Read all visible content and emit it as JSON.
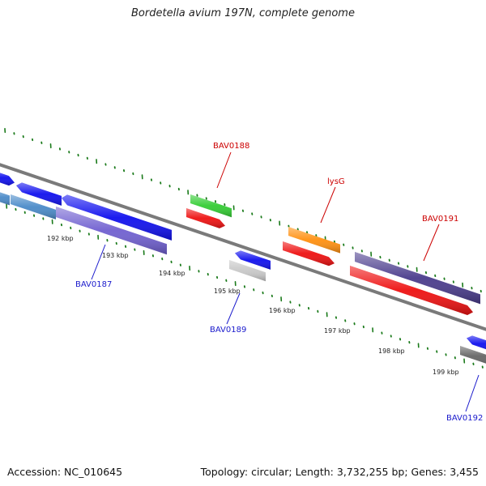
{
  "title": "Bordetella avium 197N, complete genome",
  "footer": {
    "accession": "Accession: NC_010645",
    "topology": "Topology: circular; Length: 3,732,255 bp; Genes: 3,455"
  },
  "colors": {
    "backbone": "#7a7a7a",
    "tick": "#1a7a1a",
    "forward_label": "#cc0000",
    "reverse_label": "#1a1acc"
  },
  "kbp_ticks": [
    {
      "label": "192 kbp"
    },
    {
      "label": "193 kbp"
    },
    {
      "label": "194 kbp"
    },
    {
      "label": "195 kbp"
    },
    {
      "label": "196 kbp"
    },
    {
      "label": "197 kbp"
    },
    {
      "label": "198 kbp"
    },
    {
      "label": "199 kbp"
    }
  ],
  "gene_labels": [
    {
      "text": "BAV0188",
      "strand": "forward"
    },
    {
      "text": "lysG",
      "strand": "forward"
    },
    {
      "text": "BAV0191",
      "strand": "forward"
    },
    {
      "text": "BAV0187",
      "strand": "reverse"
    },
    {
      "text": "BAV0189",
      "strand": "reverse"
    },
    {
      "text": "BAV0192",
      "strand": "reverse"
    }
  ],
  "feature_colors": {
    "blue": "#1010ee",
    "steel_blue": "#4a8ac8",
    "slate_purple": "#7060d0",
    "green": "#33cc33",
    "red": "#ee1111",
    "orange": "#ff9010",
    "dark_purple": "#4a3c8c",
    "light_gray": "#c8c8c8",
    "dark_gray": "#666666"
  }
}
